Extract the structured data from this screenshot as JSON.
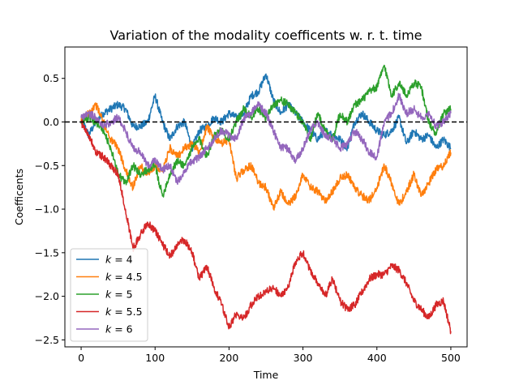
{
  "chart_data": {
    "type": "line",
    "title": "Variation of the modality coefficents w. r. t. time",
    "xlabel": "Time",
    "ylabel": "Coefficents",
    "xlim": [
      -22,
      522
    ],
    "ylim": [
      -2.58,
      0.86
    ],
    "xticks": [
      0,
      100,
      200,
      300,
      400,
      500
    ],
    "yticks": [
      -2.5,
      -2.0,
      -1.5,
      -1.0,
      -0.5,
      0.0,
      0.5
    ],
    "ytick_labels": [
      "−2.5",
      "−2.0",
      "−1.5",
      "−1.0",
      "−0.5",
      "0.0",
      "0.5"
    ],
    "grid": false,
    "legend_position": "lower-left",
    "reference_line": {
      "y": 0.0,
      "style": "dashed",
      "color": "#000000"
    },
    "series": [
      {
        "name": "k = 4",
        "legend_var": "k",
        "legend_value": "4",
        "color": "#1f77b4",
        "x": [
          0,
          10,
          20,
          30,
          40,
          50,
          60,
          70,
          80,
          90,
          100,
          110,
          120,
          130,
          140,
          150,
          160,
          170,
          180,
          190,
          200,
          210,
          220,
          230,
          240,
          250,
          260,
          270,
          280,
          290,
          300,
          310,
          320,
          330,
          340,
          350,
          360,
          370,
          380,
          390,
          400,
          410,
          420,
          430,
          440,
          450,
          460,
          470,
          480,
          490,
          500
        ],
        "values": [
          0.05,
          -0.15,
          0.0,
          0.1,
          0.15,
          0.2,
          0.15,
          -0.05,
          -0.05,
          0.0,
          0.3,
          0.0,
          -0.2,
          -0.05,
          0.0,
          -0.3,
          -0.1,
          -0.05,
          0.05,
          0.0,
          0.1,
          0.05,
          0.1,
          0.3,
          0.35,
          0.55,
          0.25,
          0.1,
          0.2,
          0.1,
          0.0,
          -0.1,
          -0.2,
          -0.1,
          -0.15,
          -0.2,
          -0.3,
          0.0,
          0.1,
          0.0,
          -0.1,
          -0.15,
          -0.1,
          0.05,
          -0.25,
          -0.1,
          -0.2,
          -0.15,
          -0.3,
          -0.2,
          -0.3
        ]
      },
      {
        "name": "k = 4.5",
        "legend_var": "k",
        "legend_value": "4.5",
        "color": "#ff7f0e",
        "x": [
          0,
          10,
          20,
          30,
          40,
          50,
          60,
          70,
          80,
          90,
          100,
          110,
          120,
          130,
          140,
          150,
          160,
          170,
          180,
          190,
          200,
          210,
          220,
          230,
          240,
          250,
          260,
          270,
          280,
          290,
          300,
          310,
          320,
          330,
          340,
          350,
          360,
          370,
          380,
          390,
          400,
          410,
          420,
          430,
          440,
          450,
          460,
          470,
          480,
          490,
          500
        ],
        "values": [
          0.0,
          0.1,
          0.2,
          0.0,
          -0.2,
          -0.3,
          -0.55,
          -0.75,
          -0.5,
          -0.6,
          -0.5,
          -0.55,
          -0.3,
          -0.4,
          -0.3,
          -0.25,
          -0.35,
          -0.05,
          -0.2,
          -0.25,
          -0.2,
          -0.65,
          -0.55,
          -0.5,
          -0.7,
          -0.75,
          -1.0,
          -0.8,
          -0.95,
          -0.85,
          -0.6,
          -0.75,
          -0.8,
          -0.9,
          -0.8,
          -0.65,
          -0.6,
          -0.75,
          -0.85,
          -0.9,
          -0.75,
          -0.5,
          -0.7,
          -0.95,
          -0.8,
          -0.6,
          -0.85,
          -0.7,
          -0.55,
          -0.5,
          -0.35
        ]
      },
      {
        "name": "k = 5",
        "legend_var": "k",
        "legend_value": "5",
        "color": "#2ca02c",
        "x": [
          0,
          10,
          20,
          30,
          40,
          50,
          60,
          70,
          80,
          90,
          100,
          110,
          120,
          130,
          140,
          150,
          160,
          170,
          180,
          190,
          200,
          210,
          220,
          230,
          240,
          250,
          260,
          270,
          280,
          290,
          300,
          310,
          320,
          330,
          340,
          350,
          360,
          370,
          380,
          390,
          400,
          410,
          420,
          430,
          440,
          450,
          460,
          470,
          480,
          490,
          500
        ],
        "values": [
          0.0,
          0.05,
          0.0,
          -0.1,
          -0.3,
          -0.6,
          -0.7,
          -0.5,
          -0.6,
          -0.55,
          -0.5,
          -0.85,
          -0.6,
          -0.45,
          -0.5,
          -0.3,
          -0.2,
          -0.4,
          -0.15,
          -0.1,
          -0.2,
          0.0,
          0.15,
          0.05,
          0.15,
          0.05,
          0.2,
          0.25,
          0.2,
          0.1,
          0.0,
          -0.2,
          0.1,
          -0.1,
          -0.2,
          0.1,
          0.0,
          0.2,
          0.25,
          0.35,
          0.4,
          0.65,
          0.3,
          0.45,
          0.3,
          0.45,
          0.4,
          0.0,
          -0.15,
          0.1,
          0.15
        ]
      },
      {
        "name": "k = 5.5",
        "legend_var": "k",
        "legend_value": "5.5",
        "color": "#d62728",
        "x": [
          0,
          10,
          20,
          30,
          40,
          50,
          60,
          70,
          80,
          90,
          100,
          110,
          120,
          130,
          140,
          150,
          160,
          170,
          180,
          190,
          200,
          210,
          220,
          230,
          240,
          250,
          260,
          270,
          280,
          290,
          300,
          310,
          320,
          330,
          340,
          350,
          360,
          370,
          380,
          390,
          400,
          410,
          420,
          430,
          440,
          450,
          460,
          470,
          480,
          490,
          500
        ],
        "values": [
          0.0,
          -0.15,
          -0.35,
          -0.4,
          -0.5,
          -0.6,
          -1.0,
          -1.45,
          -1.3,
          -1.15,
          -1.25,
          -1.4,
          -1.55,
          -1.4,
          -1.35,
          -1.5,
          -1.8,
          -1.65,
          -1.9,
          -2.1,
          -2.35,
          -2.2,
          -2.25,
          -2.1,
          -2.0,
          -1.95,
          -1.9,
          -2.0,
          -1.9,
          -1.6,
          -1.5,
          -1.7,
          -1.85,
          -2.0,
          -1.8,
          -2.05,
          -2.15,
          -2.1,
          -1.95,
          -1.8,
          -1.75,
          -1.75,
          -1.65,
          -1.7,
          -1.85,
          -2.05,
          -2.15,
          -2.25,
          -2.1,
          -2.05,
          -2.4
        ]
      },
      {
        "name": "k = 6",
        "legend_var": "k",
        "legend_value": "6",
        "color": "#9467bd",
        "x": [
          0,
          10,
          20,
          30,
          40,
          50,
          60,
          70,
          80,
          90,
          100,
          110,
          120,
          130,
          140,
          150,
          160,
          170,
          180,
          190,
          200,
          210,
          220,
          230,
          240,
          250,
          260,
          270,
          280,
          290,
          300,
          310,
          320,
          330,
          340,
          350,
          360,
          370,
          380,
          390,
          400,
          410,
          420,
          430,
          440,
          450,
          460,
          470,
          480,
          490,
          500
        ],
        "values": [
          0.05,
          0.1,
          0.05,
          -0.05,
          0.0,
          0.05,
          -0.1,
          -0.3,
          -0.35,
          -0.5,
          -0.45,
          -0.55,
          -0.5,
          -0.7,
          -0.55,
          -0.45,
          -0.4,
          -0.3,
          -0.2,
          -0.1,
          -0.15,
          -0.2,
          0.05,
          0.1,
          0.2,
          0.1,
          -0.1,
          -0.3,
          -0.3,
          -0.45,
          -0.3,
          -0.1,
          0.0,
          -0.15,
          -0.2,
          -0.3,
          -0.25,
          -0.1,
          -0.2,
          -0.35,
          -0.4,
          0.0,
          0.1,
          0.3,
          0.1,
          0.15,
          0.05,
          0.1,
          -0.05,
          0.0,
          0.1
        ]
      }
    ]
  }
}
